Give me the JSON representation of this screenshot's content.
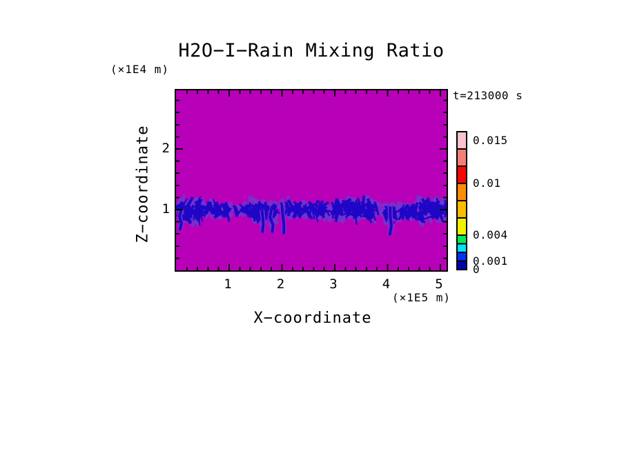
{
  "chart_data": {
    "type": "heatmap",
    "title": "H2O−I−Rain Mixing Ratio",
    "time_annotation": "t=213000 s",
    "x_axis": {
      "label": "X−coordinate",
      "unit_label": "(×1E5 m)",
      "range": [
        0,
        5.12
      ],
      "major_ticks": [
        1,
        2,
        3,
        4,
        5
      ],
      "minor_tick_step": 0.2
    },
    "z_axis": {
      "label": "Z−coordinate",
      "unit_label": "(×1E4 m)",
      "range": [
        0,
        2.97
      ],
      "major_ticks": [
        1,
        2
      ],
      "minor_tick_step": 0.2
    },
    "field": {
      "description": "Rain mixing ratio: uniform near-zero background with a broken band of diagonal rain streaks centered near z = 1 (×1E4 m)",
      "background_color": "#B800B8",
      "band": {
        "z_center": 1.0,
        "streak_colors": {
          "moderate": "#7530CE",
          "intense": "#1F06C6"
        },
        "clusters": [
          {
            "x0": 0.04,
            "x1": 0.5,
            "z_bot": 0.72,
            "z_top": 1.25,
            "density": 1.0
          },
          {
            "x0": 0.55,
            "x1": 1.0,
            "z_bot": 0.85,
            "z_top": 1.15,
            "density": 0.55
          },
          {
            "x0": 1.05,
            "x1": 1.17,
            "z_bot": 0.92,
            "z_top": 1.06,
            "density": 0.3
          },
          {
            "x0": 1.2,
            "x1": 1.45,
            "z_bot": 0.88,
            "z_top": 1.1,
            "density": 0.35
          },
          {
            "x0": 1.47,
            "x1": 1.88,
            "z_bot": 0.7,
            "z_top": 1.22,
            "density": 1.0
          },
          {
            "x0": 1.99,
            "x1": 2.45,
            "z_bot": 0.85,
            "z_top": 1.15,
            "density": 0.5
          },
          {
            "x0": 2.45,
            "x1": 2.9,
            "z_bot": 0.85,
            "z_top": 1.12,
            "density": 0.45
          },
          {
            "x0": 2.97,
            "x1": 3.8,
            "z_bot": 0.78,
            "z_top": 1.22,
            "density": 0.95
          },
          {
            "x0": 3.93,
            "x1": 4.15,
            "z_bot": 0.75,
            "z_top": 1.15,
            "density": 0.7
          },
          {
            "x0": 4.18,
            "x1": 4.55,
            "z_bot": 0.82,
            "z_top": 1.1,
            "density": 0.6
          },
          {
            "x0": 4.6,
            "x1": 5.12,
            "z_bot": 0.75,
            "z_top": 1.25,
            "density": 1.0
          }
        ],
        "shafts": [
          {
            "x": 0.09,
            "z_top": 1.0,
            "z_bot": 0.66
          },
          {
            "x": 1.62,
            "z_top": 1.0,
            "z_bot": 0.62
          },
          {
            "x": 1.8,
            "z_top": 1.0,
            "z_bot": 0.62
          },
          {
            "x": 2.0,
            "z_top": 1.05,
            "z_bot": 0.6
          },
          {
            "x": 4.05,
            "z_top": 1.05,
            "z_bot": 0.58
          }
        ]
      }
    },
    "colorbar": {
      "range": [
        0,
        0.016
      ],
      "levels": [
        0,
        0.001,
        0.002,
        0.003,
        0.004,
        0.006,
        0.008,
        0.01,
        0.012,
        0.014,
        0.016
      ],
      "colors": [
        "#0000B2",
        "#0131F2",
        "#00E2FE",
        "#00EC5C",
        "#EEF400",
        "#FCBD00",
        "#FC8D05",
        "#FA0505",
        "#F57E76",
        "#FAC4CE"
      ],
      "tick_labels": [
        {
          "text": "0.015",
          "value": 0.015
        },
        {
          "text": "0.01",
          "value": 0.01
        },
        {
          "text": "0.004",
          "value": 0.004
        },
        {
          "text": "0.001",
          "value": 0.001
        },
        {
          "text": "0",
          "value": 0.0
        }
      ]
    }
  }
}
